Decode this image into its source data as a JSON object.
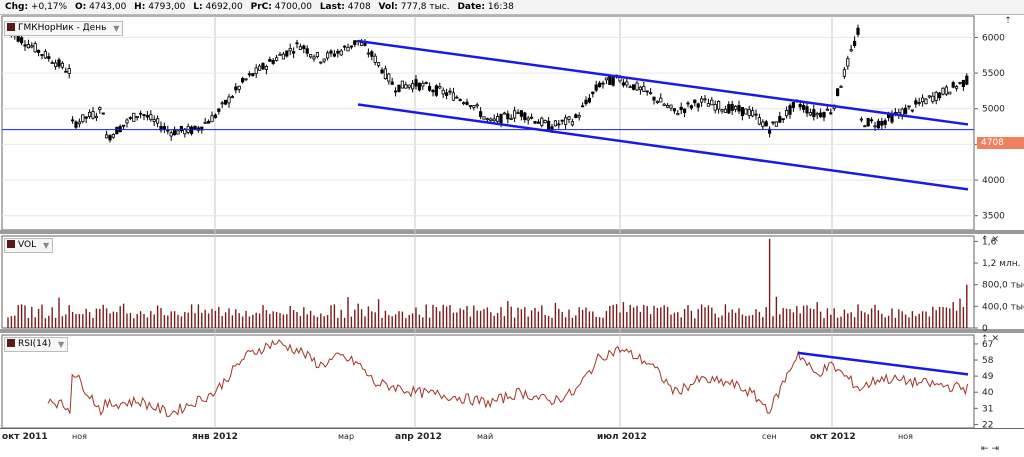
{
  "header": {
    "chg_label": "Chg:",
    "chg_value": "+0,17%",
    "open_label": "O:",
    "open_value": "4743,00",
    "high_label": "H:",
    "high_value": "4793,00",
    "low_label": "L:",
    "low_value": "4692,00",
    "prc_label": "PrC:",
    "prc_value": "4700,00",
    "last_label": "Last:",
    "last_value": "4708",
    "vol_label": "Vol:",
    "vol_value": "777,8 тыс.",
    "date_label": "Date:",
    "date_value": "16:38"
  },
  "panels": {
    "price_tag": "ГМКНорНик - День",
    "volume_tag": "VOL",
    "rsi_tag": "RSI(14)",
    "last_price_label": "4708"
  },
  "colors": {
    "candle": "#000000",
    "trend": "#1a1ae0",
    "last_line": "#1a1aff",
    "volume": "#7a1a1a",
    "rsi": "#a0352a",
    "price_tag_bg": "#f08060",
    "grid": "#c8c8c8"
  },
  "chart_data": [
    {
      "type": "candlestick",
      "title": "ГМКНорНик - День",
      "ylim": [
        3300,
        6300
      ],
      "yticks": [
        "6000",
        "5500",
        "5000",
        "4500",
        "4000",
        "3500"
      ],
      "ytick_values": [
        6000,
        5500,
        5000,
        4500,
        4000,
        3500
      ],
      "last": 4708,
      "close_anchors": [
        [
          "окт 2011",
          6100
        ],
        [
          "mid-окт",
          6150
        ],
        [
          "ноя",
          5500
        ],
        [
          "mid-ноя",
          5000
        ],
        [
          "late-ноя",
          5400
        ],
        [
          "early-дек",
          4950
        ],
        [
          "mid-дек",
          4680
        ],
        [
          "late-дек",
          4700
        ],
        [
          "янв 2012",
          4900
        ],
        [
          "mid-янв",
          5400
        ],
        [
          "late-янв",
          5700
        ],
        [
          "early-фев",
          5900
        ],
        [
          "mid-фев",
          5700
        ],
        [
          "late-фев",
          5800
        ],
        [
          "early-мар",
          5950
        ],
        [
          "mid-мар",
          5700
        ],
        [
          "late-мар",
          5300
        ],
        [
          "апр 2012",
          5350
        ],
        [
          "mid-апр",
          5200
        ],
        [
          "late-апр",
          5100
        ],
        [
          "май",
          4800
        ],
        [
          "mid-май",
          4950
        ],
        [
          "late-май",
          4750
        ],
        [
          "early-июн",
          4850
        ],
        [
          "mid-июн",
          5350
        ],
        [
          "июл 2012",
          5420
        ],
        [
          "mid-июл",
          5200
        ],
        [
          "late-июл",
          4950
        ],
        [
          "early-авг",
          5100
        ],
        [
          "mid-авг",
          5000
        ],
        [
          "late-авг",
          4950
        ],
        [
          "сен",
          4720
        ],
        [
          "mid-сен",
          5080
        ],
        [
          "late-сен",
          4920
        ],
        [
          "окт 2012",
          4980
        ],
        [
          "mid-окт",
          4820
        ],
        [
          "late-окт",
          4800
        ],
        [
          "ноя",
          4780
        ],
        [
          "mid-ноя",
          4570
        ],
        [
          "late-ноя",
          4708
        ]
      ],
      "trendlines": [
        {
          "from": [
            "early-мар",
            5950
          ],
          "to": [
            "late-ноя",
            4780
          ]
        },
        {
          "from": [
            "early-мар",
            5060
          ],
          "to": [
            "late-ноя",
            3870
          ]
        }
      ]
    },
    {
      "type": "bar",
      "title": "VOL",
      "ylim": [
        0,
        1700000
      ],
      "yticks": [
        "1,6",
        "1,2 млн.",
        "800,0 тыс",
        "400,0 тыс",
        "0"
      ],
      "ytick_values": [
        1600000,
        1200000,
        800000,
        400000,
        0
      ],
      "spikes": [
        [
          "сен",
          1650000
        ],
        [
          "late-ноя",
          800000
        ],
        [
          "early-мар",
          450000
        ]
      ]
    },
    {
      "type": "line",
      "title": "RSI(14)",
      "ylim": [
        20,
        72
      ],
      "yticks": [
        "67",
        "58",
        "49",
        "40",
        "31",
        "22"
      ],
      "ytick_values": [
        67,
        58,
        49,
        40,
        31,
        22
      ],
      "anchors": [
        [
          "окт 2011",
          48
        ],
        [
          "ноя",
          30
        ],
        [
          "mid-ноя",
          27
        ],
        [
          "late-ноя",
          42
        ],
        [
          "early-дек",
          35
        ],
        [
          "mid-дек",
          28
        ],
        [
          "янв 2012",
          40
        ],
        [
          "mid-янв",
          60
        ],
        [
          "late-янв",
          68
        ],
        [
          "early-фев",
          63
        ],
        [
          "mid-фев",
          55
        ],
        [
          "late-фев",
          60
        ],
        [
          "early-мар",
          56
        ],
        [
          "mid-мар",
          45
        ],
        [
          "late-мар",
          43
        ],
        [
          "апр 2012",
          40
        ],
        [
          "mid-апр",
          38
        ],
        [
          "май",
          34
        ],
        [
          "mid-май",
          40
        ],
        [
          "late-май",
          35
        ],
        [
          "early-июн",
          40
        ],
        [
          "mid-июн",
          60
        ],
        [
          "июл 2012",
          64
        ],
        [
          "mid-июл",
          56
        ],
        [
          "late-июл",
          40
        ],
        [
          "early-авг",
          47
        ],
        [
          "mid-авг",
          45
        ],
        [
          "late-авг",
          40
        ],
        [
          "сен",
          30
        ],
        [
          "mid-сен",
          62
        ],
        [
          "late-сен",
          50
        ],
        [
          "окт 2012",
          55
        ],
        [
          "mid-окт",
          42
        ],
        [
          "late-окт",
          48
        ],
        [
          "ноя",
          52
        ],
        [
          "mid-ноя",
          33
        ],
        [
          "late-ноя",
          48
        ]
      ],
      "trendline": {
        "from": [
          "mid-сен",
          62
        ],
        "to": [
          "late-ноя",
          50
        ]
      }
    }
  ],
  "x_axis": {
    "labels": [
      "окт 2011",
      "ноя",
      "янв 2012",
      "мар",
      "апр 2012",
      "май",
      "июл 2012",
      "сен",
      "окт 2012",
      "ноя"
    ],
    "bold": [
      true,
      false,
      true,
      false,
      true,
      false,
      true,
      false,
      true,
      false
    ],
    "gridline_labels": [
      "янв 2012",
      "апр 2012",
      "июл 2012",
      "окт 2012"
    ]
  },
  "controls": {
    "move_top": "⇡",
    "close": "✕",
    "scroll_left": "⇤",
    "scroll_right": "⇥"
  }
}
